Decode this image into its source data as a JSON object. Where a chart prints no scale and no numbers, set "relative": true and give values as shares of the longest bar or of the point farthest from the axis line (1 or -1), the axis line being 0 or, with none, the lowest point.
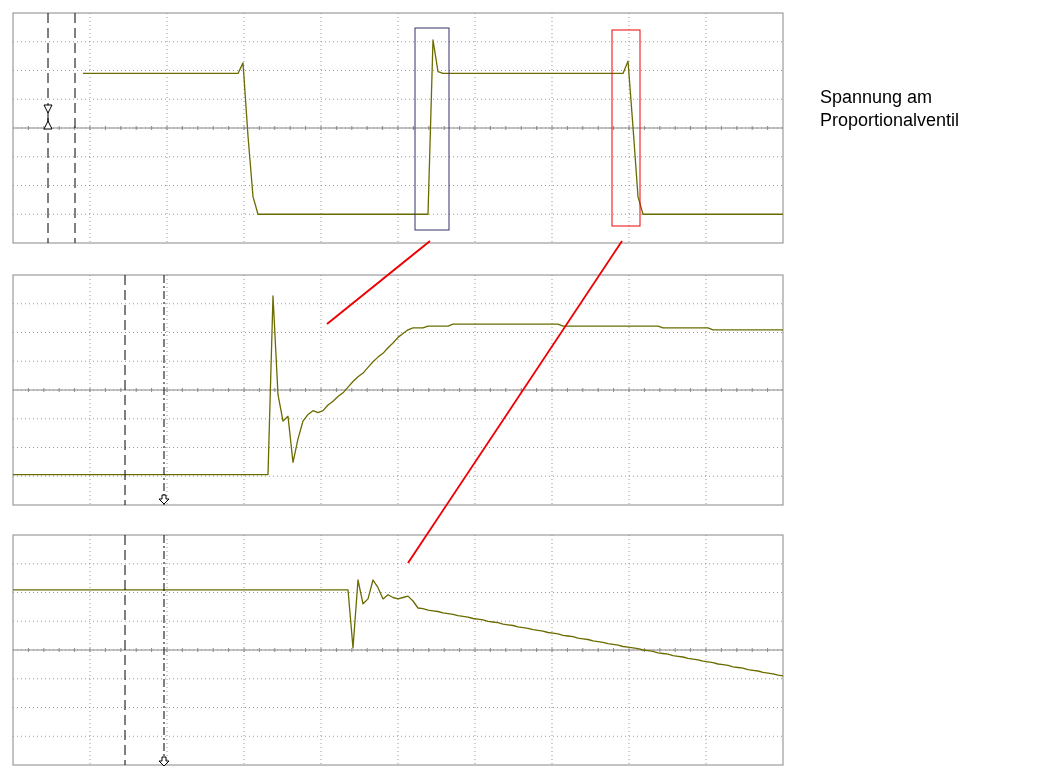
{
  "chart_data": [
    {
      "type": "line",
      "relative": true,
      "grid": true,
      "color": "#6b6b00",
      "annotations": [
        "Spannung am Proportionalventil"
      ],
      "categories": [
        null,
        null,
        null,
        null,
        null,
        null,
        null,
        null,
        null,
        null,
        null,
        null,
        null,
        null,
        null,
        null,
        null,
        null,
        null,
        null,
        null,
        null,
        null,
        null,
        null,
        null,
        null,
        null,
        null,
        null,
        null,
        null,
        null,
        null,
        null,
        null,
        null,
        null,
        null,
        null,
        null,
        null,
        null,
        null,
        null,
        null,
        null,
        null,
        null,
        null,
        null,
        null,
        null,
        null,
        null,
        null,
        null,
        null,
        null,
        null,
        null,
        null,
        null,
        null,
        null,
        null,
        null,
        null,
        null,
        null,
        null,
        null,
        null,
        null,
        null,
        null,
        null,
        null,
        null,
        null,
        null,
        null,
        null,
        null,
        null,
        null,
        null,
        null,
        null,
        null,
        null,
        null,
        null,
        null,
        null,
        null,
        null,
        null,
        null,
        null,
        null,
        null,
        null,
        null,
        null,
        null,
        null,
        null,
        null,
        null,
        null,
        null,
        null,
        null,
        null,
        null,
        null,
        null,
        null,
        null,
        null,
        null,
        null,
        null,
        null,
        null,
        null,
        null,
        null,
        null,
        null,
        null,
        null,
        null,
        null,
        null,
        null,
        null,
        null,
        null,
        null,
        null,
        null,
        null,
        null,
        null,
        null,
        null,
        null,
        null,
        null,
        null,
        null,
        null,
        null
      ],
      "values": [
        null,
        null,
        null,
        null,
        null,
        null,
        null,
        null,
        null,
        null,
        null,
        null,
        null,
        null,
        0.62,
        0.62,
        0.62,
        0.62,
        0.62,
        0.62,
        0.62,
        0.62,
        0.62,
        0.62,
        0.62,
        0.62,
        0.62,
        0.62,
        0.62,
        0.62,
        0.62,
        0.62,
        0.62,
        0.62,
        0.62,
        0.62,
        0.62,
        0.62,
        0.62,
        0.62,
        0.62,
        0.62,
        0.62,
        0.62,
        0.62,
        0.62,
        0.74,
        -0.09,
        -0.78,
        -0.98,
        -0.98,
        -0.98,
        -0.98,
        -0.98,
        -0.98,
        -0.98,
        -0.98,
        -0.98,
        -0.98,
        -0.98,
        -0.98,
        -0.98,
        -0.98,
        -0.98,
        -0.98,
        -0.98,
        -0.98,
        -0.98,
        -0.98,
        -0.98,
        -0.98,
        -0.98,
        -0.98,
        -0.98,
        -0.98,
        -0.98,
        -0.98,
        -0.98,
        -0.98,
        -0.98,
        -0.98,
        -0.98,
        -0.98,
        -0.98,
        1,
        0.64,
        0.62,
        0.62,
        0.62,
        0.62,
        0.62,
        0.62,
        0.62,
        0.62,
        0.62,
        0.62,
        0.62,
        0.62,
        0.62,
        0.62,
        0.62,
        0.62,
        0.62,
        0.62,
        0.62,
        0.62,
        0.62,
        0.62,
        0.62,
        0.62,
        0.62,
        0.62,
        0.62,
        0.62,
        0.62,
        0.62,
        0.62,
        0.62,
        0.62,
        0.62,
        0.62,
        0.62,
        0.62,
        0.76,
        0.01,
        -0.78,
        -0.98,
        -0.98,
        -0.98,
        -0.98,
        -0.98,
        -0.98,
        -0.98,
        -0.98,
        -0.98,
        -0.98,
        -0.98,
        -0.98,
        -0.98,
        -0.98,
        -0.98,
        -0.98,
        -0.98,
        -0.98,
        -0.98,
        -0.98,
        -0.98,
        -0.98,
        -0.98,
        -0.98,
        -0.98,
        -0.98,
        -0.98,
        -0.98,
        -0.98
      ]
    },
    {
      "type": "line",
      "relative": true,
      "grid": true,
      "color": "#6b6b00",
      "categories": [
        null,
        null,
        null,
        null,
        null,
        null,
        null,
        null,
        null,
        null,
        null,
        null,
        null,
        null,
        null,
        null,
        null,
        null,
        null,
        null,
        null,
        null,
        null,
        null,
        null,
        null,
        null,
        null,
        null,
        null,
        null,
        null,
        null,
        null,
        null,
        null,
        null,
        null,
        null,
        null,
        null,
        null,
        null,
        null,
        null,
        null,
        null,
        null,
        null,
        null,
        null,
        null,
        null,
        null,
        null,
        null,
        null,
        null,
        null,
        null,
        null,
        null,
        null,
        null,
        null,
        null,
        null,
        null,
        null,
        null,
        null,
        null,
        null,
        null,
        null,
        null,
        null,
        null,
        null,
        null,
        null,
        null,
        null,
        null,
        null,
        null,
        null,
        null,
        null,
        null,
        null,
        null,
        null,
        null,
        null,
        null,
        null,
        null,
        null,
        null,
        null,
        null,
        null,
        null,
        null,
        null,
        null,
        null,
        null,
        null,
        null,
        null,
        null,
        null,
        null,
        null,
        null,
        null,
        null,
        null,
        null,
        null,
        null,
        null,
        null,
        null,
        null,
        null,
        null,
        null,
        null,
        null,
        null,
        null,
        null,
        null,
        null,
        null,
        null,
        null,
        null,
        null,
        null,
        null,
        null,
        null,
        null,
        null,
        null,
        null,
        null,
        null,
        null,
        null,
        null
      ],
      "values": [
        -0.9,
        -0.9,
        -0.9,
        -0.9,
        -0.9,
        -0.9,
        -0.9,
        -0.9,
        -0.9,
        -0.9,
        -0.9,
        -0.9,
        -0.9,
        -0.9,
        -0.9,
        -0.9,
        -0.9,
        -0.9,
        -0.9,
        -0.9,
        -0.9,
        -0.9,
        -0.9,
        -0.9,
        -0.9,
        -0.9,
        -0.9,
        -0.9,
        -0.9,
        -0.9,
        -0.9,
        -0.9,
        -0.9,
        -0.9,
        -0.9,
        -0.9,
        -0.9,
        -0.9,
        -0.9,
        -0.9,
        -0.9,
        -0.9,
        -0.9,
        -0.9,
        -0.9,
        -0.9,
        -0.9,
        -0.9,
        -0.9,
        -0.9,
        -0.9,
        -0.9,
        1,
        -0.05,
        -0.33,
        -0.28,
        -0.77,
        -0.52,
        -0.33,
        -0.26,
        -0.22,
        -0.24,
        -0.22,
        -0.16,
        -0.12,
        -0.07,
        -0.03,
        0.03,
        0.09,
        0.14,
        0.18,
        0.24,
        0.3,
        0.35,
        0.39,
        0.45,
        0.5,
        0.56,
        0.6,
        0.64,
        0.66,
        0.66,
        0.66,
        0.68,
        0.68,
        0.68,
        0.68,
        0.68,
        0.7,
        0.7,
        0.7,
        0.7,
        0.7,
        0.7,
        0.7,
        0.7,
        0.7,
        0.7,
        0.7,
        0.7,
        0.7,
        0.7,
        0.7,
        0.7,
        0.7,
        0.7,
        0.7,
        0.7,
        0.7,
        0.7,
        0.68,
        0.68,
        0.68,
        0.68,
        0.68,
        0.68,
        0.68,
        0.68,
        0.68,
        0.68,
        0.68,
        0.68,
        0.68,
        0.68,
        0.68,
        0.68,
        0.68,
        0.68,
        0.68,
        0.68,
        0.66,
        0.66,
        0.66,
        0.66,
        0.66,
        0.66,
        0.66,
        0.66,
        0.66,
        0.66,
        0.64,
        0.64,
        0.64,
        0.64,
        0.64,
        0.64,
        0.64,
        0.64,
        0.64,
        0.64,
        0.64,
        0.64,
        0.64,
        0.64,
        0.64
      ]
    },
    {
      "type": "line",
      "relative": true,
      "grid": true,
      "color": "#6b6b00",
      "categories": [
        null,
        null,
        null,
        null,
        null,
        null,
        null,
        null,
        null,
        null,
        null,
        null,
        null,
        null,
        null,
        null,
        null,
        null,
        null,
        null,
        null,
        null,
        null,
        null,
        null,
        null,
        null,
        null,
        null,
        null,
        null,
        null,
        null,
        null,
        null,
        null,
        null,
        null,
        null,
        null,
        null,
        null,
        null,
        null,
        null,
        null,
        null,
        null,
        null,
        null,
        null,
        null,
        null,
        null,
        null,
        null,
        null,
        null,
        null,
        null,
        null,
        null,
        null,
        null,
        null,
        null,
        null,
        null,
        null,
        null,
        null,
        null,
        null,
        null,
        null,
        null,
        null,
        null,
        null,
        null,
        null,
        null,
        null,
        null,
        null,
        null,
        null,
        null,
        null,
        null,
        null,
        null,
        null,
        null,
        null,
        null,
        null,
        null,
        null,
        null,
        null,
        null,
        null,
        null,
        null,
        null,
        null,
        null,
        null,
        null,
        null,
        null,
        null,
        null,
        null,
        null,
        null,
        null,
        null,
        null,
        null,
        null,
        null,
        null,
        null,
        null,
        null,
        null,
        null,
        null,
        null,
        null,
        null,
        null,
        null,
        null,
        null,
        null,
        null,
        null,
        null,
        null,
        null,
        null,
        null,
        null,
        null,
        null,
        null,
        null,
        null,
        null,
        null,
        null,
        null
      ],
      "values": [
        0.86,
        0.86,
        0.86,
        0.86,
        0.86,
        0.86,
        0.86,
        0.86,
        0.86,
        0.86,
        0.86,
        0.86,
        0.86,
        0.86,
        0.86,
        0.86,
        0.86,
        0.86,
        0.86,
        0.86,
        0.86,
        0.86,
        0.86,
        0.86,
        0.86,
        0.86,
        0.86,
        0.86,
        0.86,
        0.86,
        0.86,
        0.86,
        0.86,
        0.86,
        0.86,
        0.86,
        0.86,
        0.86,
        0.86,
        0.86,
        0.86,
        0.86,
        0.86,
        0.86,
        0.86,
        0.86,
        0.86,
        0.86,
        0.86,
        0.86,
        0.86,
        0.86,
        0.86,
        0.86,
        0.86,
        0.86,
        0.86,
        0.86,
        0.86,
        0.86,
        0.86,
        0.86,
        0.86,
        0.86,
        0.86,
        0.86,
        0.86,
        0.86,
        0.03,
        1,
        0.66,
        0.73,
        1,
        0.89,
        0.73,
        0.79,
        0.75,
        0.73,
        0.75,
        0.77,
        0.7,
        0.6,
        0.59,
        0.57,
        0.56,
        0.55,
        0.53,
        0.52,
        0.51,
        0.49,
        0.48,
        0.47,
        0.45,
        0.44,
        0.43,
        0.41,
        0.4,
        0.39,
        0.37,
        0.36,
        0.35,
        0.33,
        0.32,
        0.31,
        0.29,
        0.28,
        0.27,
        0.25,
        0.24,
        0.23,
        0.21,
        0.2,
        0.19,
        0.17,
        0.16,
        0.15,
        0.13,
        0.12,
        0.11,
        0.09,
        0.08,
        0.07,
        0.05,
        0.04,
        0.03,
        0.02,
        0,
        -0.01,
        -0.02,
        -0.04,
        -0.05,
        -0.06,
        -0.08,
        -0.09,
        -0.1,
        -0.12,
        -0.13,
        -0.14,
        -0.16,
        -0.17,
        -0.18,
        -0.2,
        -0.21,
        -0.22,
        -0.24,
        -0.25,
        -0.26,
        -0.28,
        -0.29,
        -0.3,
        -0.32,
        -0.33,
        -0.34,
        -0.36,
        -0.37
      ]
    }
  ]
}
